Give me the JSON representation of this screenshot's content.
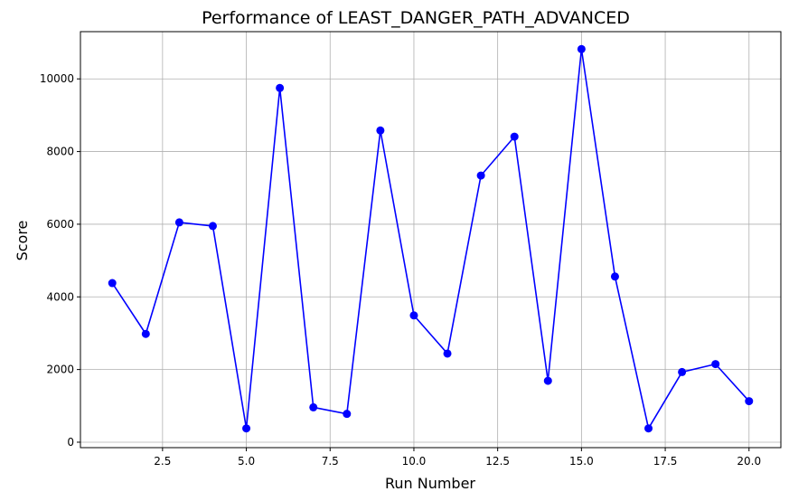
{
  "chart_data": {
    "type": "line",
    "title": "Performance of LEAST_DANGER_PATH_ADVANCED",
    "xlabel": "Run Number",
    "ylabel": "Score",
    "xlim": [
      0.05,
      20.95
    ],
    "ylim": [
      -150,
      11300
    ],
    "xticks": [
      2.5,
      5.0,
      7.5,
      10.0,
      12.5,
      15.0,
      17.5,
      20.0
    ],
    "xtick_labels": [
      "2.5",
      "5.0",
      "7.5",
      "10.0",
      "12.5",
      "15.0",
      "17.5",
      "20.0"
    ],
    "yticks": [
      0,
      2000,
      4000,
      6000,
      8000,
      10000
    ],
    "ytick_labels": [
      "0",
      "2000",
      "4000",
      "6000",
      "8000",
      "10000"
    ],
    "grid": true,
    "series": [
      {
        "color": "#0000ff",
        "marker": "circle",
        "x": [
          1,
          2,
          3,
          4,
          5,
          6,
          7,
          8,
          9,
          10,
          11,
          12,
          13,
          14,
          15,
          16,
          17,
          18,
          19,
          20
        ],
        "y": [
          4380,
          2980,
          6050,
          5950,
          380,
          9750,
          960,
          780,
          8580,
          3490,
          2440,
          7340,
          8410,
          1690,
          10820,
          4560,
          380,
          1930,
          2150,
          1130
        ]
      }
    ]
  }
}
